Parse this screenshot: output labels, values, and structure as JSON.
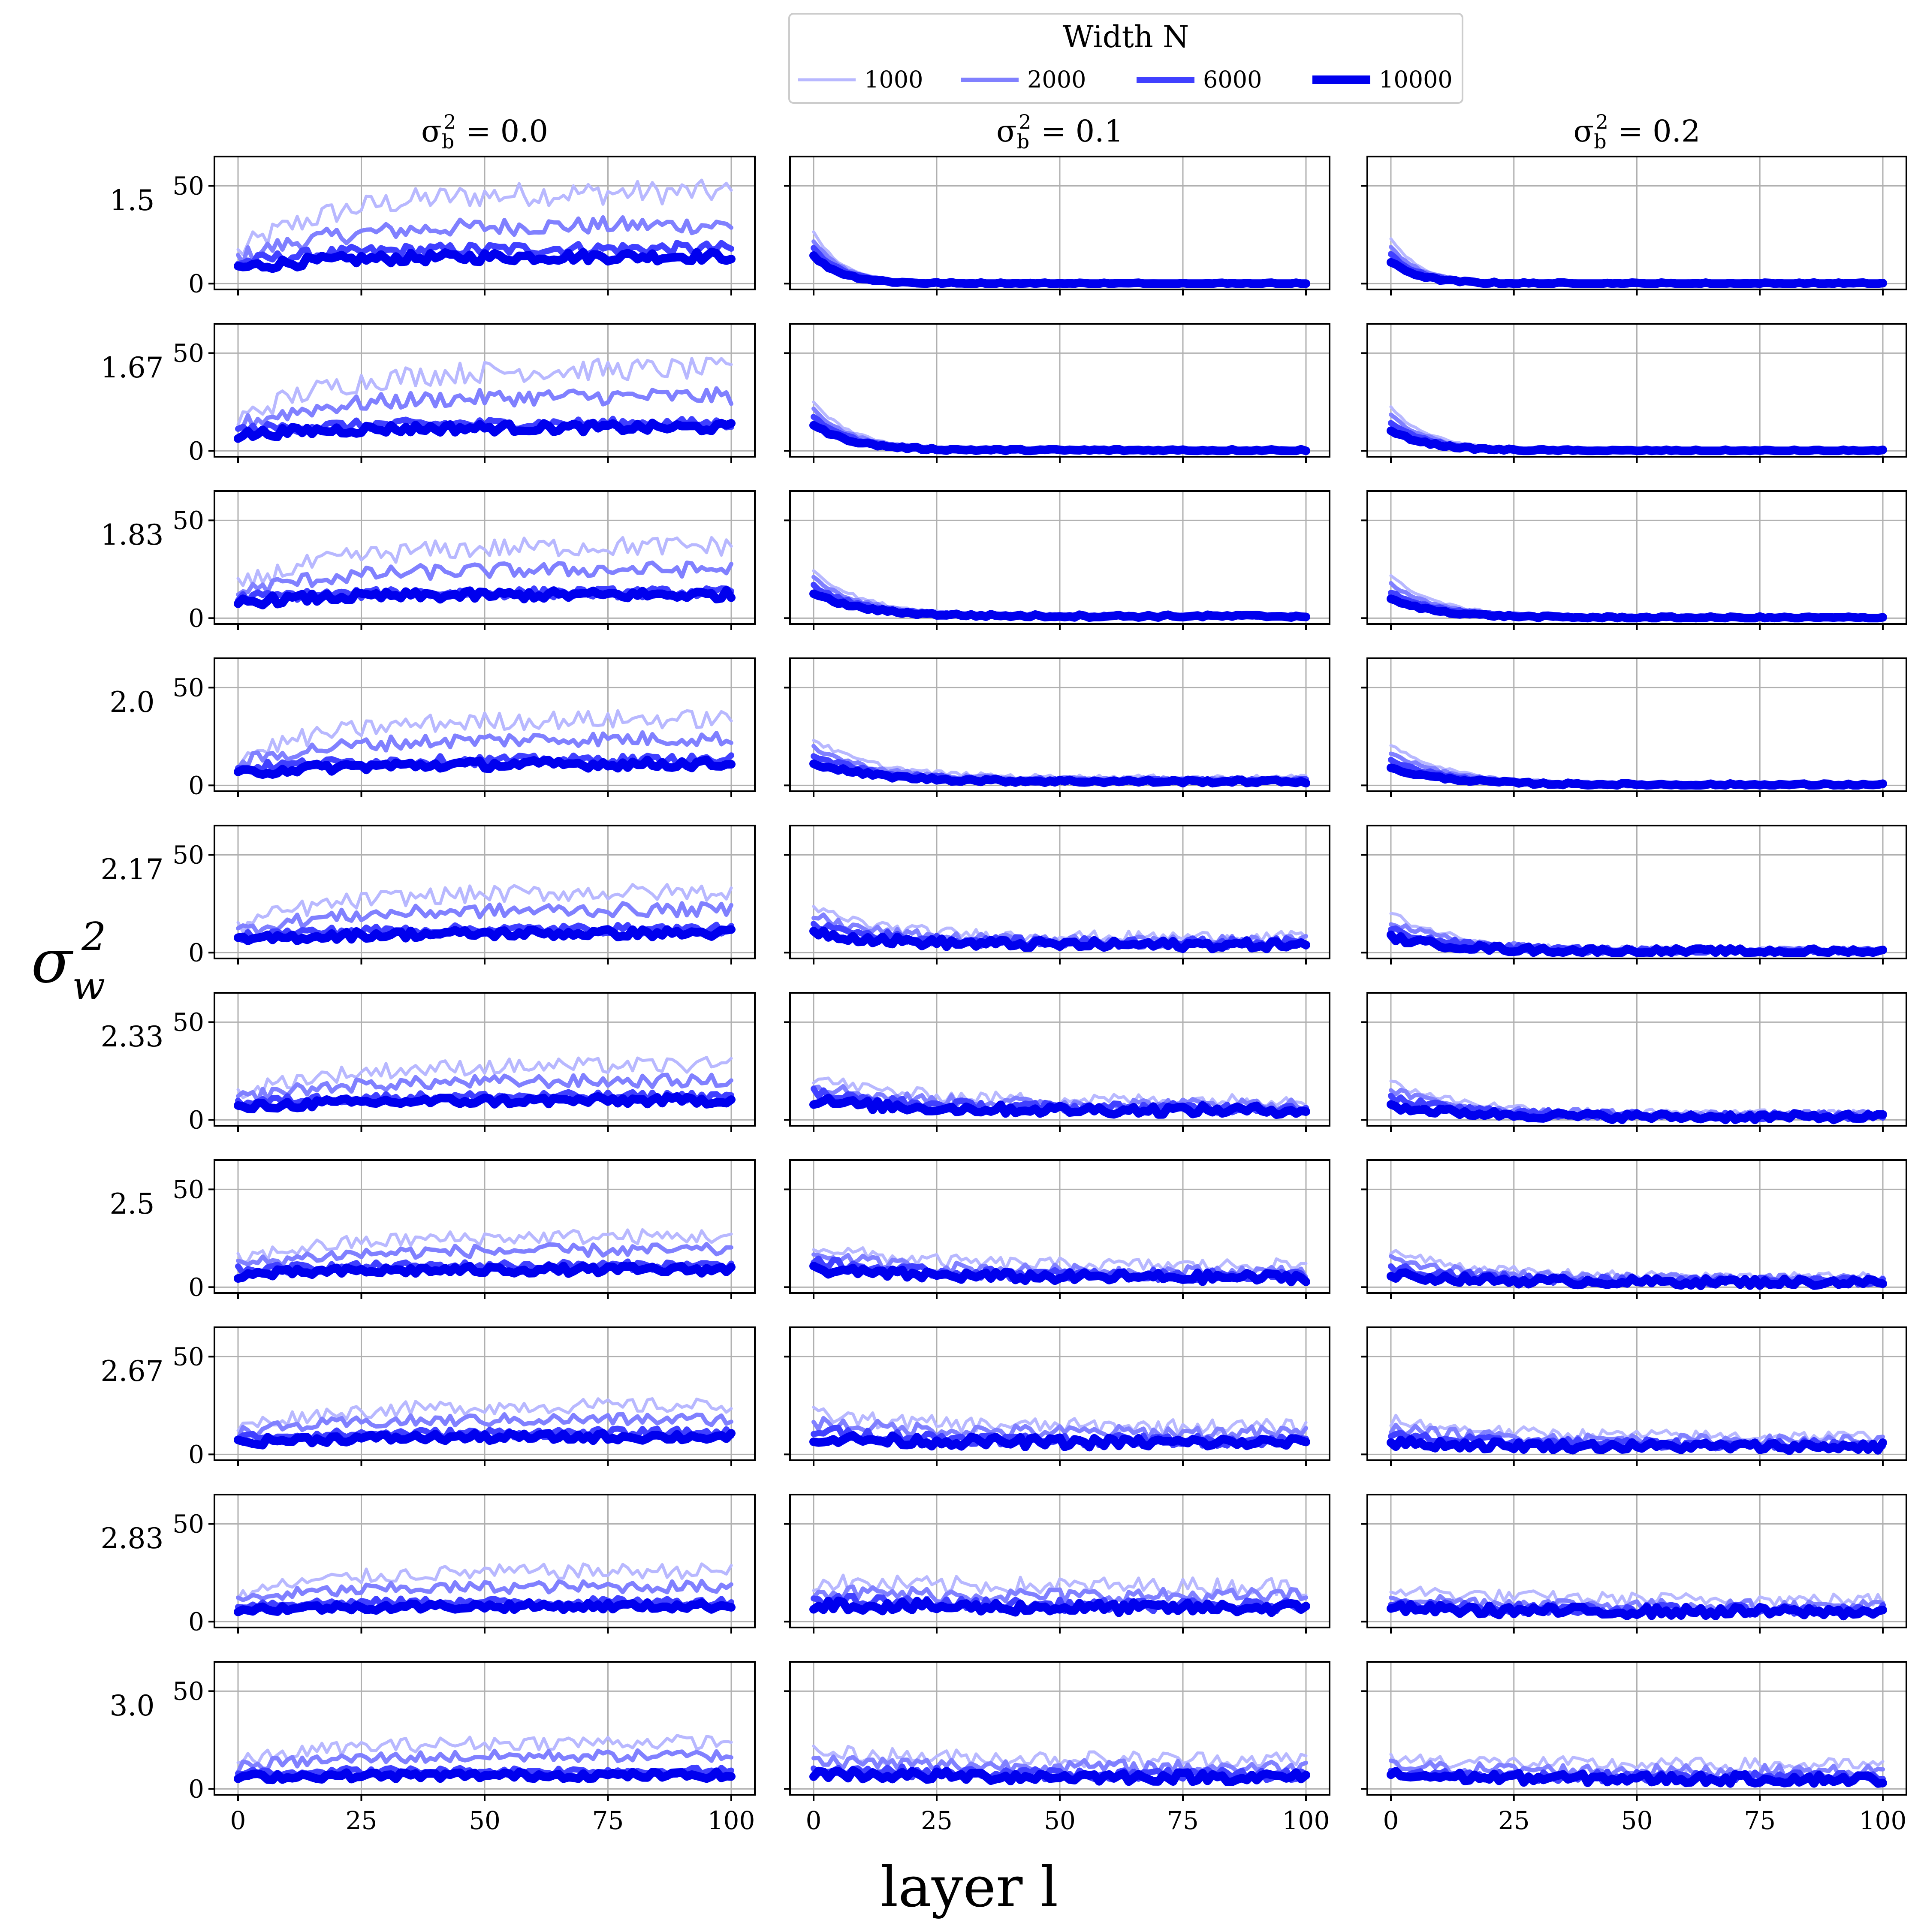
{
  "chart_data": {
    "type": "line",
    "layout": "grid 10 rows x 3 columns of small-multiple line panels",
    "x_label": "layer l",
    "y_label": "σ_w^2",
    "x_ticks": [
      "0",
      "25",
      "50",
      "75",
      "100"
    ],
    "y_ticks": [
      "0",
      "50"
    ],
    "x_range": [
      0,
      100
    ],
    "y_range": [
      -3,
      65
    ],
    "grid": true,
    "legend": {
      "title": "Width N",
      "position": "top-center",
      "entries": [
        {
          "label": "1000",
          "color": "#b8b8ff",
          "width": 7
        },
        {
          "label": "2000",
          "color": "#8080ff",
          "width": 10
        },
        {
          "label": "6000",
          "color": "#4040ff",
          "width": 14
        },
        {
          "label": "10000",
          "color": "#0000ee",
          "width": 20
        }
      ]
    },
    "columns": [
      {
        "title": "σ_b^2 = 0.0",
        "sigma_b2": 0.0
      },
      {
        "title": "σ_b^2 = 0.1",
        "sigma_b2": 0.1
      },
      {
        "title": "σ_b^2 = 0.2",
        "sigma_b2": 0.2
      }
    ],
    "rows": [
      {
        "label": "1.5",
        "end_levels": [
          [
            47,
            30,
            18,
            14
          ],
          [
            0,
            0,
            0,
            0
          ],
          [
            0,
            0,
            0,
            0
          ]
        ]
      },
      {
        "label": "1.67",
        "end_levels": [
          [
            42,
            28,
            14,
            12
          ],
          [
            0.5,
            0.4,
            0.3,
            0.3
          ],
          [
            0,
            0,
            0,
            0
          ]
        ]
      },
      {
        "label": "1.83",
        "end_levels": [
          [
            37,
            25,
            13,
            12
          ],
          [
            1.5,
            1.2,
            1,
            1
          ],
          [
            0.3,
            0.3,
            0.2,
            0.2
          ]
        ]
      },
      {
        "label": "2.0",
        "end_levels": [
          [
            34,
            24,
            13,
            11
          ],
          [
            4,
            3,
            2.5,
            2
          ],
          [
            0.5,
            0.4,
            0.3,
            0.3
          ]
        ]
      },
      {
        "label": "2.17",
        "end_levels": [
          [
            31,
            22,
            12,
            10
          ],
          [
            8,
            6,
            5,
            4
          ],
          [
            1,
            0.8,
            0.6,
            0.5
          ]
        ]
      },
      {
        "label": "2.33",
        "end_levels": [
          [
            28,
            20,
            12,
            10
          ],
          [
            10,
            8,
            6,
            5
          ],
          [
            3,
            2.5,
            2,
            1.5
          ]
        ]
      },
      {
        "label": "2.5",
        "end_levels": [
          [
            26,
            19,
            11,
            9
          ],
          [
            11,
            8,
            6,
            5
          ],
          [
            5,
            4,
            3,
            2.5
          ]
        ]
      },
      {
        "label": "2.67",
        "end_levels": [
          [
            25,
            18,
            11,
            9
          ],
          [
            14,
            11,
            7,
            6
          ],
          [
            9,
            7,
            5,
            4
          ]
        ]
      },
      {
        "label": "2.83",
        "end_levels": [
          [
            26,
            18,
            10,
            8
          ],
          [
            18,
            13,
            8,
            7
          ],
          [
            11,
            8,
            6,
            5
          ]
        ]
      },
      {
        "label": "3.0",
        "end_levels": [
          [
            24,
            17,
            9,
            7
          ],
          [
            15,
            11,
            7,
            6
          ],
          [
            12,
            9,
            6,
            5
          ]
        ]
      }
    ]
  }
}
